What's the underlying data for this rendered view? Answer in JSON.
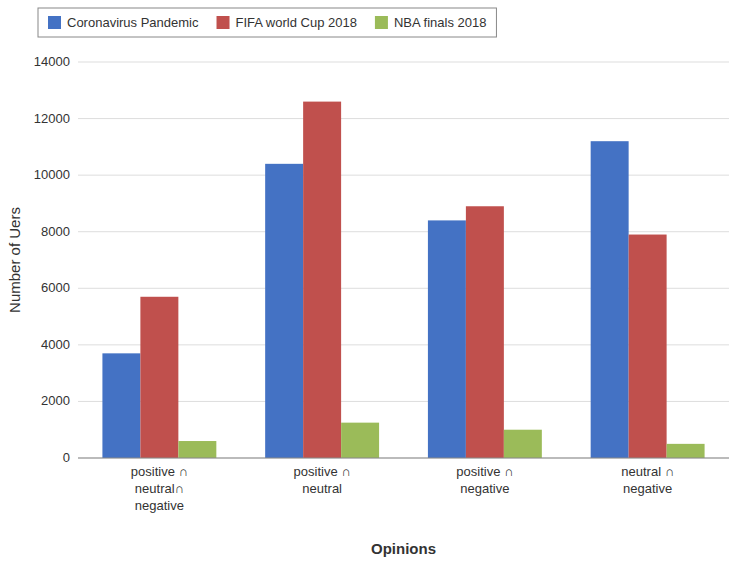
{
  "chart_data": {
    "type": "bar",
    "categories": [
      "positive ∩\nneutral∩\nnegative",
      "positive ∩\nneutral",
      "positive ∩\nnegative",
      "neutral ∩\nnegative"
    ],
    "series": [
      {
        "name": "Coronavirus Pandemic",
        "color": "#4472C4",
        "values": [
          3700,
          10400,
          8400,
          11200
        ]
      },
      {
        "name": "FIFA world Cup 2018",
        "color": "#C0504D",
        "values": [
          5700,
          12600,
          8900,
          7900
        ]
      },
      {
        "name": "NBA finals 2018",
        "color": "#9BBB59",
        "values": [
          600,
          1250,
          1000,
          500
        ]
      }
    ],
    "xlabel": "Opinions",
    "ylabel": "Number of Uers",
    "ylim": [
      0,
      14000
    ],
    "yticks": [
      0,
      2000,
      4000,
      6000,
      8000,
      10000,
      12000,
      14000
    ],
    "grid": true,
    "legend": "upper left"
  }
}
